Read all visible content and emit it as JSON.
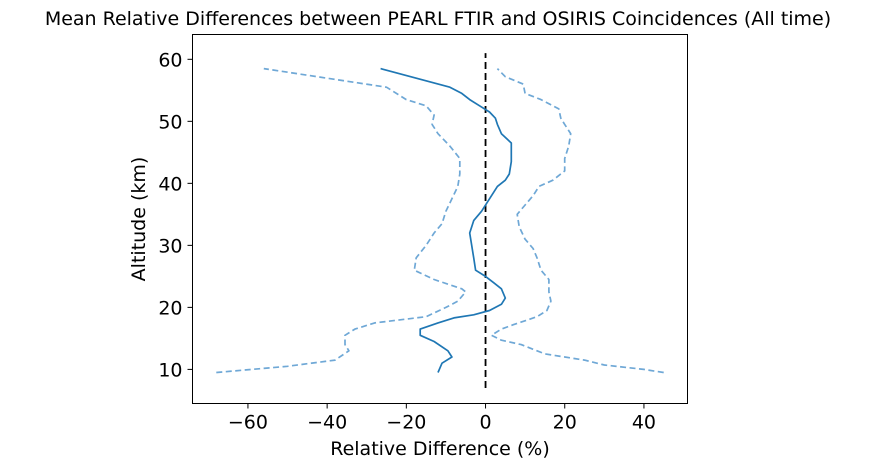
{
  "chart_data": {
    "type": "line",
    "title": "Mean Relative Differences between PEARL FTIR and OSIRIS Coincidences (All time)",
    "xlabel": "Relative Difference (%)",
    "ylabel": "Altitude (km)",
    "xlim": [
      -74,
      51
    ],
    "ylim": [
      4.5,
      64
    ],
    "xticks": [
      -60,
      -40,
      -20,
      0,
      20,
      40
    ],
    "xtick_labels": [
      "−60",
      "−40",
      "−20",
      "0",
      "20",
      "40"
    ],
    "yticks": [
      10,
      20,
      30,
      40,
      50,
      60
    ],
    "ytick_labels": [
      "10",
      "20",
      "30",
      "40",
      "50",
      "60"
    ],
    "grid": false,
    "legend": "none",
    "colors": {
      "mean": "#1f77b4",
      "bounds": "#6fa8d6",
      "reference": "#000000"
    },
    "reference_line": {
      "x": 0,
      "y": [
        7,
        61
      ]
    },
    "series": [
      {
        "role": "mean",
        "style": "solid",
        "x": [
          -12,
          -11,
          -8.5,
          -9.5,
          -13,
          -16.5,
          -16.5,
          -12,
          -8,
          -3,
          1,
          4,
          5,
          4,
          2,
          0,
          -2.5,
          -3,
          -3.5,
          -4,
          -3,
          -1,
          1,
          3,
          5,
          6,
          6.5,
          6.5,
          6.5,
          4,
          3,
          2.5,
          1,
          -1.5,
          -4,
          -6,
          -9,
          -26.5
        ],
        "y": [
          9.5,
          11,
          12,
          13,
          14.5,
          15.5,
          16.5,
          17.5,
          18.3,
          18.8,
          19.5,
          20.5,
          21.5,
          23,
          24,
          25,
          26,
          28,
          30,
          32,
          34,
          35.5,
          37.5,
          39.5,
          40.5,
          41.5,
          43.5,
          45,
          46.5,
          48,
          49.5,
          50.5,
          51.5,
          52.5,
          53.5,
          54.5,
          55.5,
          58.5
        ]
      },
      {
        "role": "lower-bound",
        "style": "dashed",
        "x": [
          -68,
          -50,
          -38,
          -34.5,
          -35.5,
          -35.5,
          -33,
          -28,
          -15,
          -10,
          -7,
          -5,
          -6,
          -13,
          -18,
          -17.5,
          -15,
          -13,
          -11,
          -10,
          -8.5,
          -7,
          -6.5,
          -6.5,
          -9,
          -12,
          -13.5,
          -13,
          -15,
          -20,
          -25,
          -56
        ],
        "y": [
          9.5,
          10.5,
          11.5,
          13,
          14,
          15.5,
          16.5,
          17.5,
          18.5,
          20,
          21,
          22.5,
          23,
          24.5,
          26,
          28,
          30,
          32,
          33.5,
          35.5,
          37.5,
          39.5,
          41.5,
          44,
          46,
          48,
          49.5,
          51,
          52.5,
          53.5,
          55.5,
          58.5
        ]
      },
      {
        "role": "upper-bound",
        "style": "dashed",
        "x": [
          45,
          40,
          30,
          25,
          15,
          9,
          4,
          1.5,
          4,
          7,
          13,
          15.5,
          16.5,
          16,
          16,
          14,
          13,
          12,
          10,
          8.5,
          8,
          10,
          12,
          13.5,
          17,
          20,
          20,
          21,
          21.5,
          20,
          19,
          18.5,
          14,
          10,
          9.5,
          5,
          3
        ],
        "y": [
          9.5,
          10,
          10.7,
          11.5,
          12.5,
          14,
          14.7,
          15.5,
          16.5,
          17.2,
          18.5,
          19.5,
          21,
          22.5,
          24.5,
          26,
          28,
          29.5,
          31,
          33,
          35,
          36.5,
          38,
          39.5,
          40.5,
          42,
          44,
          46,
          48,
          49.5,
          50.5,
          52,
          53.5,
          54.5,
          56,
          57.2,
          58.5
        ]
      }
    ]
  }
}
